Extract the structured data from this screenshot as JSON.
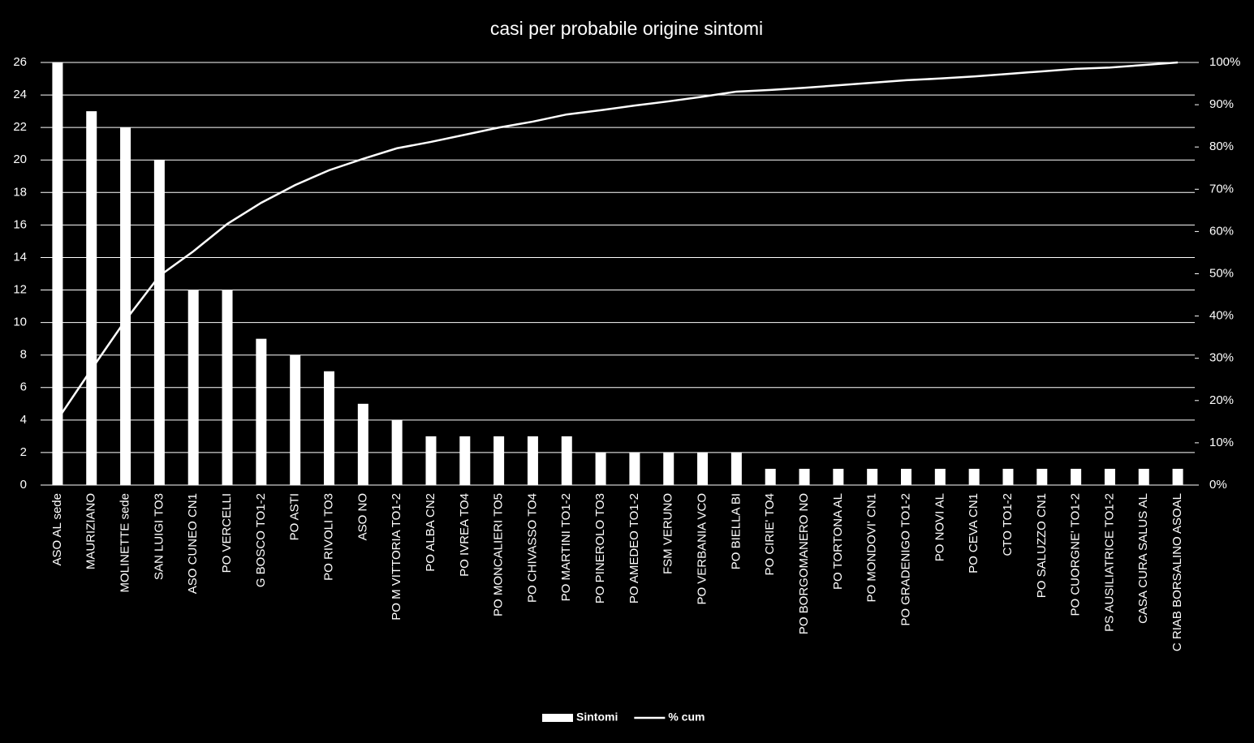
{
  "chart_data": {
    "type": "bar",
    "title": "casi per probabile origine sintomi",
    "categories": [
      "ASO AL sede",
      "MAURIZIANO",
      "MOLINETTE sede",
      "SAN LUIGI TO3",
      "ASO CUNEO CN1",
      "PO VERCELLI",
      "G BOSCO TO1-2",
      "PO ASTI",
      "PO RIVOLI TO3",
      "ASO NO",
      "PO M VITTORIA TO1-2",
      "PO ALBA CN2",
      "PO IVREA TO4",
      "PO MONCALIERI TO5",
      "PO CHIVASSO TO4",
      "PO MARTINI TO1-2",
      "PO PINEROLO TO3",
      "PO AMEDEO TO1-2",
      "FSM VERUNO",
      "PO VERBANIA VCO",
      "PO BIELLA BI",
      "PO CIRIE' TO4",
      "PO BORGOMANERO NO",
      "PO TORTONA AL",
      "PO MONDOVI' CN1",
      "PO GRADENIGO TO1-2",
      "PO NOVI AL",
      "PO CEVA CN1",
      "CTO TO1-2",
      "PO SALUZZO CN1",
      "PO CUORGNE' TO1-2",
      "PS AUSILIATRICE TO1-2",
      "CASA CURA SALUS AL",
      "C RIAB BORSALINO ASOAL"
    ],
    "series": [
      {
        "name": "Sintomi",
        "color": "#ffffff",
        "values": [
          26,
          23,
          22,
          20,
          12,
          12,
          9,
          8,
          7,
          5,
          4,
          3,
          3,
          3,
          3,
          3,
          2,
          2,
          2,
          2,
          2,
          1,
          1,
          1,
          1,
          1,
          1,
          1,
          1,
          1,
          1,
          1,
          1,
          1
        ]
      },
      {
        "name": "% cum",
        "color": "#ffffff",
        "axis": "y2",
        "type": "line",
        "values": [
          15.5,
          27.4,
          39,
          49.5,
          55.3,
          61.8,
          66.8,
          71,
          74.5,
          77.2,
          79.7,
          81.2,
          82.9,
          84.6,
          86,
          87.7,
          88.7,
          89.8,
          90.8,
          91.9,
          93.1,
          93.5,
          94,
          94.6,
          95.2,
          95.8,
          96.2,
          96.7,
          97.3,
          97.9,
          98.5,
          98.8,
          99.4,
          100
        ]
      }
    ],
    "ylim": [
      0,
      26
    ],
    "yticks": [
      0,
      2,
      4,
      6,
      8,
      10,
      12,
      14,
      16,
      18,
      20,
      22,
      24,
      26
    ],
    "y2lim": [
      0,
      100
    ],
    "y2ticks": [
      {
        "value": 0,
        "label": "0%"
      },
      {
        "value": 10,
        "label": "10%"
      },
      {
        "value": 20,
        "label": "20%"
      },
      {
        "value": 30,
        "label": "30%"
      },
      {
        "value": 40,
        "label": "40%"
      },
      {
        "value": 50,
        "label": "50%"
      },
      {
        "value": 60,
        "label": "60%"
      },
      {
        "value": 70,
        "label": "70%"
      },
      {
        "value": 80,
        "label": "80%"
      },
      {
        "value": 90,
        "label": "90%"
      },
      {
        "value": 100,
        "label": "100%"
      }
    ],
    "grid": true,
    "legend": "bottom"
  }
}
